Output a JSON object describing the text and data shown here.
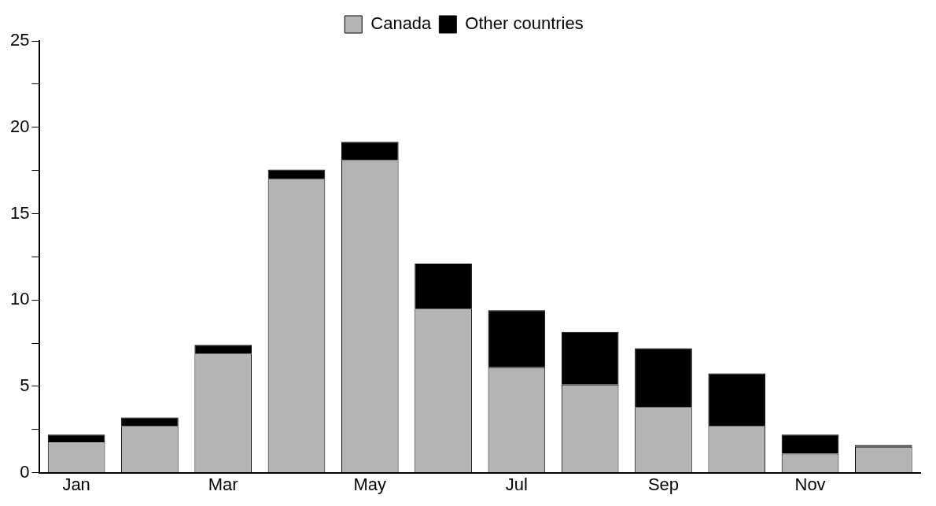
{
  "chart_data": {
    "type": "bar",
    "stacked": true,
    "categories": [
      "Jan",
      null,
      "Mar",
      null,
      "May",
      null,
      "Jul",
      null,
      "Sep",
      null,
      "Nov",
      null
    ],
    "series": [
      {
        "name": "Canada",
        "color": "#b4b4b4",
        "values": [
          1.8,
          2.7,
          6.9,
          17.0,
          18.1,
          9.5,
          6.1,
          5.1,
          3.8,
          2.7,
          1.1,
          1.5
        ]
      },
      {
        "name": "Other countries",
        "color": "#000000",
        "values": [
          0.4,
          0.5,
          0.5,
          0.55,
          1.05,
          2.6,
          3.3,
          3.05,
          3.4,
          3.05,
          1.1,
          0.1
        ]
      }
    ],
    "ylim": [
      0,
      25
    ],
    "yticks": [
      0,
      {
        "value": 2.5,
        "label": null
      },
      5,
      {
        "value": 7.5,
        "label": null
      },
      10,
      {
        "value": 12.5,
        "label": null
      },
      15,
      {
        "value": 17.5,
        "label": null
      },
      20,
      {
        "value": 22.5,
        "label": null
      },
      25
    ],
    "grid": false,
    "legend": "top"
  }
}
